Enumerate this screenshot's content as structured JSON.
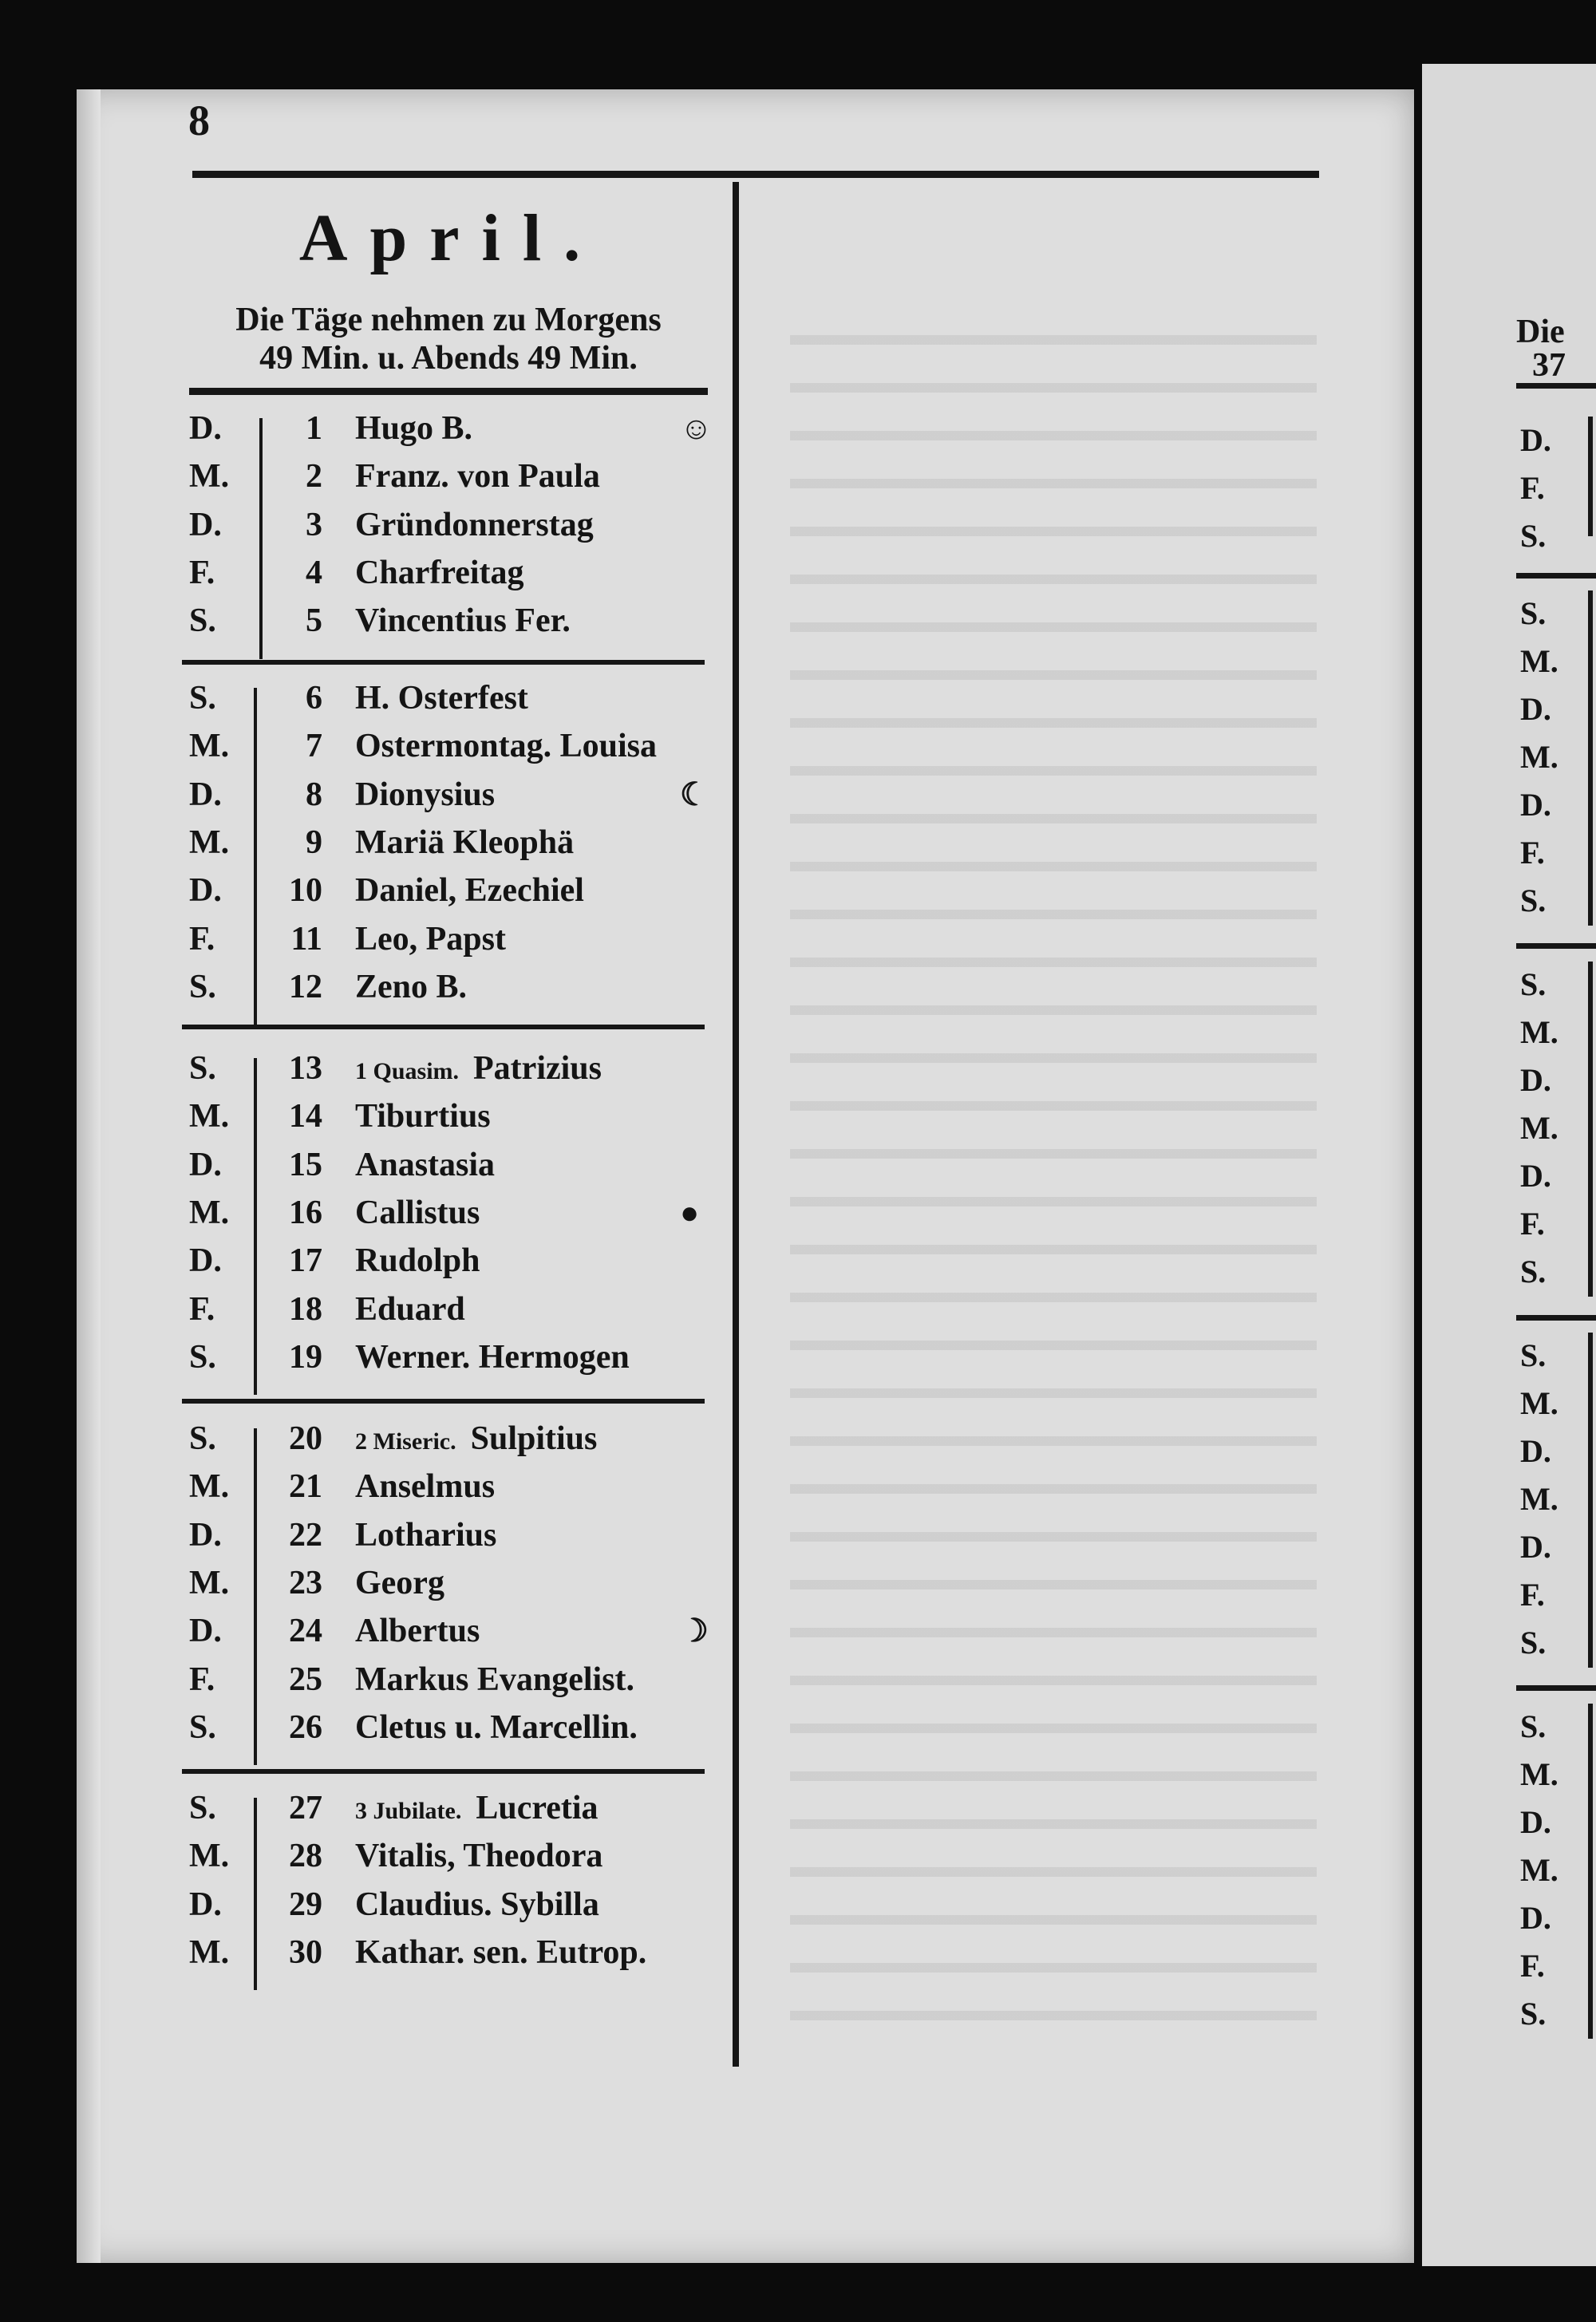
{
  "page_number": "8",
  "title": "April.",
  "subtitle_line1": "Die Täge nehmen zu Morgens",
  "subtitle_line2": "49 Min. u. Abends 49 Min.",
  "days": [
    {
      "wd": "D.",
      "day": "1",
      "name": "Hugo B.",
      "symbol": "☺"
    },
    {
      "wd": "M.",
      "day": "2",
      "name": "Franz. von Paula"
    },
    {
      "wd": "D.",
      "day": "3",
      "name": "Gründonnerstag"
    },
    {
      "wd": "F.",
      "day": "4",
      "name": "Charfreitag"
    },
    {
      "wd": "S.",
      "day": "5",
      "name": "Vincentius Fer."
    },
    {
      "wd": "S.",
      "day": "6",
      "name": "H. Osterfest"
    },
    {
      "wd": "M.",
      "day": "7",
      "name": "Ostermontag. Louisa"
    },
    {
      "wd": "D.",
      "day": "8",
      "name": "Dionysius",
      "symbol": "☾"
    },
    {
      "wd": "M.",
      "day": "9",
      "name": "Mariä Kleophä"
    },
    {
      "wd": "D.",
      "day": "10",
      "name": "Daniel, Ezechiel"
    },
    {
      "wd": "F.",
      "day": "11",
      "name": "Leo, Papst"
    },
    {
      "wd": "S.",
      "day": "12",
      "name": "Zeno B."
    },
    {
      "wd": "S.",
      "day": "13",
      "prefix": "1 Quasim.",
      "name": "Patrizius"
    },
    {
      "wd": "M.",
      "day": "14",
      "name": "Tiburtius"
    },
    {
      "wd": "D.",
      "day": "15",
      "name": "Anastasia"
    },
    {
      "wd": "M.",
      "day": "16",
      "name": "Callistus",
      "symbol": "●"
    },
    {
      "wd": "D.",
      "day": "17",
      "name": "Rudolph"
    },
    {
      "wd": "F.",
      "day": "18",
      "name": "Eduard"
    },
    {
      "wd": "S.",
      "day": "19",
      "name": "Werner. Hermogen"
    },
    {
      "wd": "S.",
      "day": "20",
      "prefix": "2 Miseric.",
      "name": "Sulpitius"
    },
    {
      "wd": "M.",
      "day": "21",
      "name": "Anselmus"
    },
    {
      "wd": "D.",
      "day": "22",
      "name": "Lotharius"
    },
    {
      "wd": "M.",
      "day": "23",
      "name": "Georg"
    },
    {
      "wd": "D.",
      "day": "24",
      "name": "Albertus",
      "symbol": "☽"
    },
    {
      "wd": "F.",
      "day": "25",
      "name": "Markus Evangelist."
    },
    {
      "wd": "S.",
      "day": "26",
      "name": "Cletus u. Marcellin."
    },
    {
      "wd": "S.",
      "day": "27",
      "prefix": "3 Jubilate.",
      "name": "Lucretia"
    },
    {
      "wd": "M.",
      "day": "28",
      "name": "Vitalis, Theodora"
    },
    {
      "wd": "D.",
      "day": "29",
      "name": "Claudius. Sybilla"
    },
    {
      "wd": "M.",
      "day": "30",
      "name": "Kathar. sen. Eutrop."
    }
  ],
  "next_page": {
    "subtitle_start": "Die",
    "subtitle_line2_start": "37",
    "weekdays": [
      "D.",
      "F.",
      "S.",
      "S.",
      "M.",
      "D.",
      "M.",
      "D.",
      "F.",
      "S.",
      "S.",
      "M.",
      "D.",
      "M.",
      "D.",
      "F.",
      "S.",
      "S.",
      "M.",
      "D.",
      "M.",
      "D.",
      "F.",
      "S.",
      "S.",
      "M.",
      "D.",
      "M.",
      "D.",
      "F.",
      "S."
    ]
  }
}
